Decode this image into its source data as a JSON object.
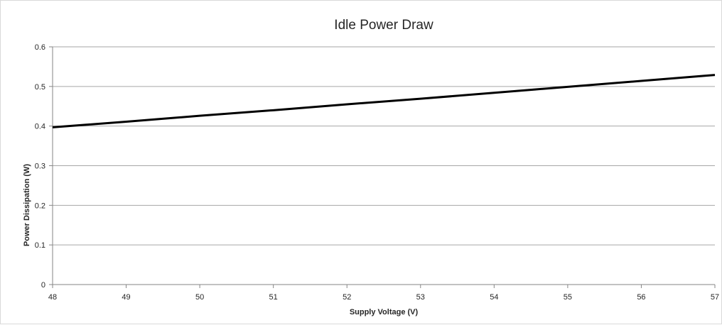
{
  "chart_data": {
    "type": "line",
    "title": "Idle Power Draw",
    "xlabel": "Supply Voltage (V)",
    "ylabel": "Power Dissipation (W)",
    "xlim": [
      48,
      57
    ],
    "ylim": [
      0,
      0.6
    ],
    "x_ticks": [
      "48",
      "49",
      "50",
      "51",
      "52",
      "53",
      "54",
      "55",
      "56",
      "57"
    ],
    "y_ticks": [
      "0",
      "0.1",
      "0.2",
      "0.3",
      "0.4",
      "0.5",
      "0.6"
    ],
    "grid": "horizontal",
    "legend": "none",
    "series": [
      {
        "x": [
          48,
          49,
          50,
          51,
          52,
          53,
          54,
          55,
          56,
          57
        ],
        "y": [
          0.397,
          0.411,
          0.426,
          0.44,
          0.455,
          0.469,
          0.484,
          0.499,
          0.514,
          0.529
        ],
        "color": "#000000"
      }
    ]
  }
}
